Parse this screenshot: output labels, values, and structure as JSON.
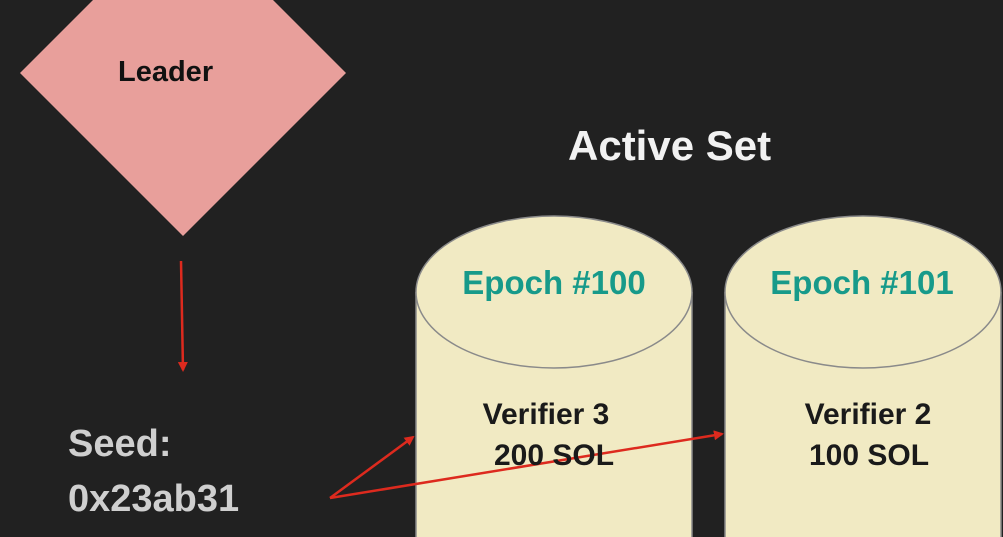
{
  "leader": {
    "label": "Leader"
  },
  "active_set": {
    "title": "Active Set"
  },
  "seed": {
    "label": "Seed:",
    "value": "0x23ab31"
  },
  "epochs": [
    {
      "label": "Epoch #100",
      "verifier": "Verifier 3",
      "stake": "200 SOL"
    },
    {
      "label": "Epoch #101",
      "verifier": "Verifier 2",
      "stake": "100 SOL"
    }
  ],
  "colors": {
    "background": "#212121",
    "leader_fill": "#e89f9b",
    "cylinder_fill": "#f1eac3",
    "epoch_text": "#179a8a",
    "arrow": "#dd2a1e",
    "seed_text": "#cfcfcf"
  }
}
